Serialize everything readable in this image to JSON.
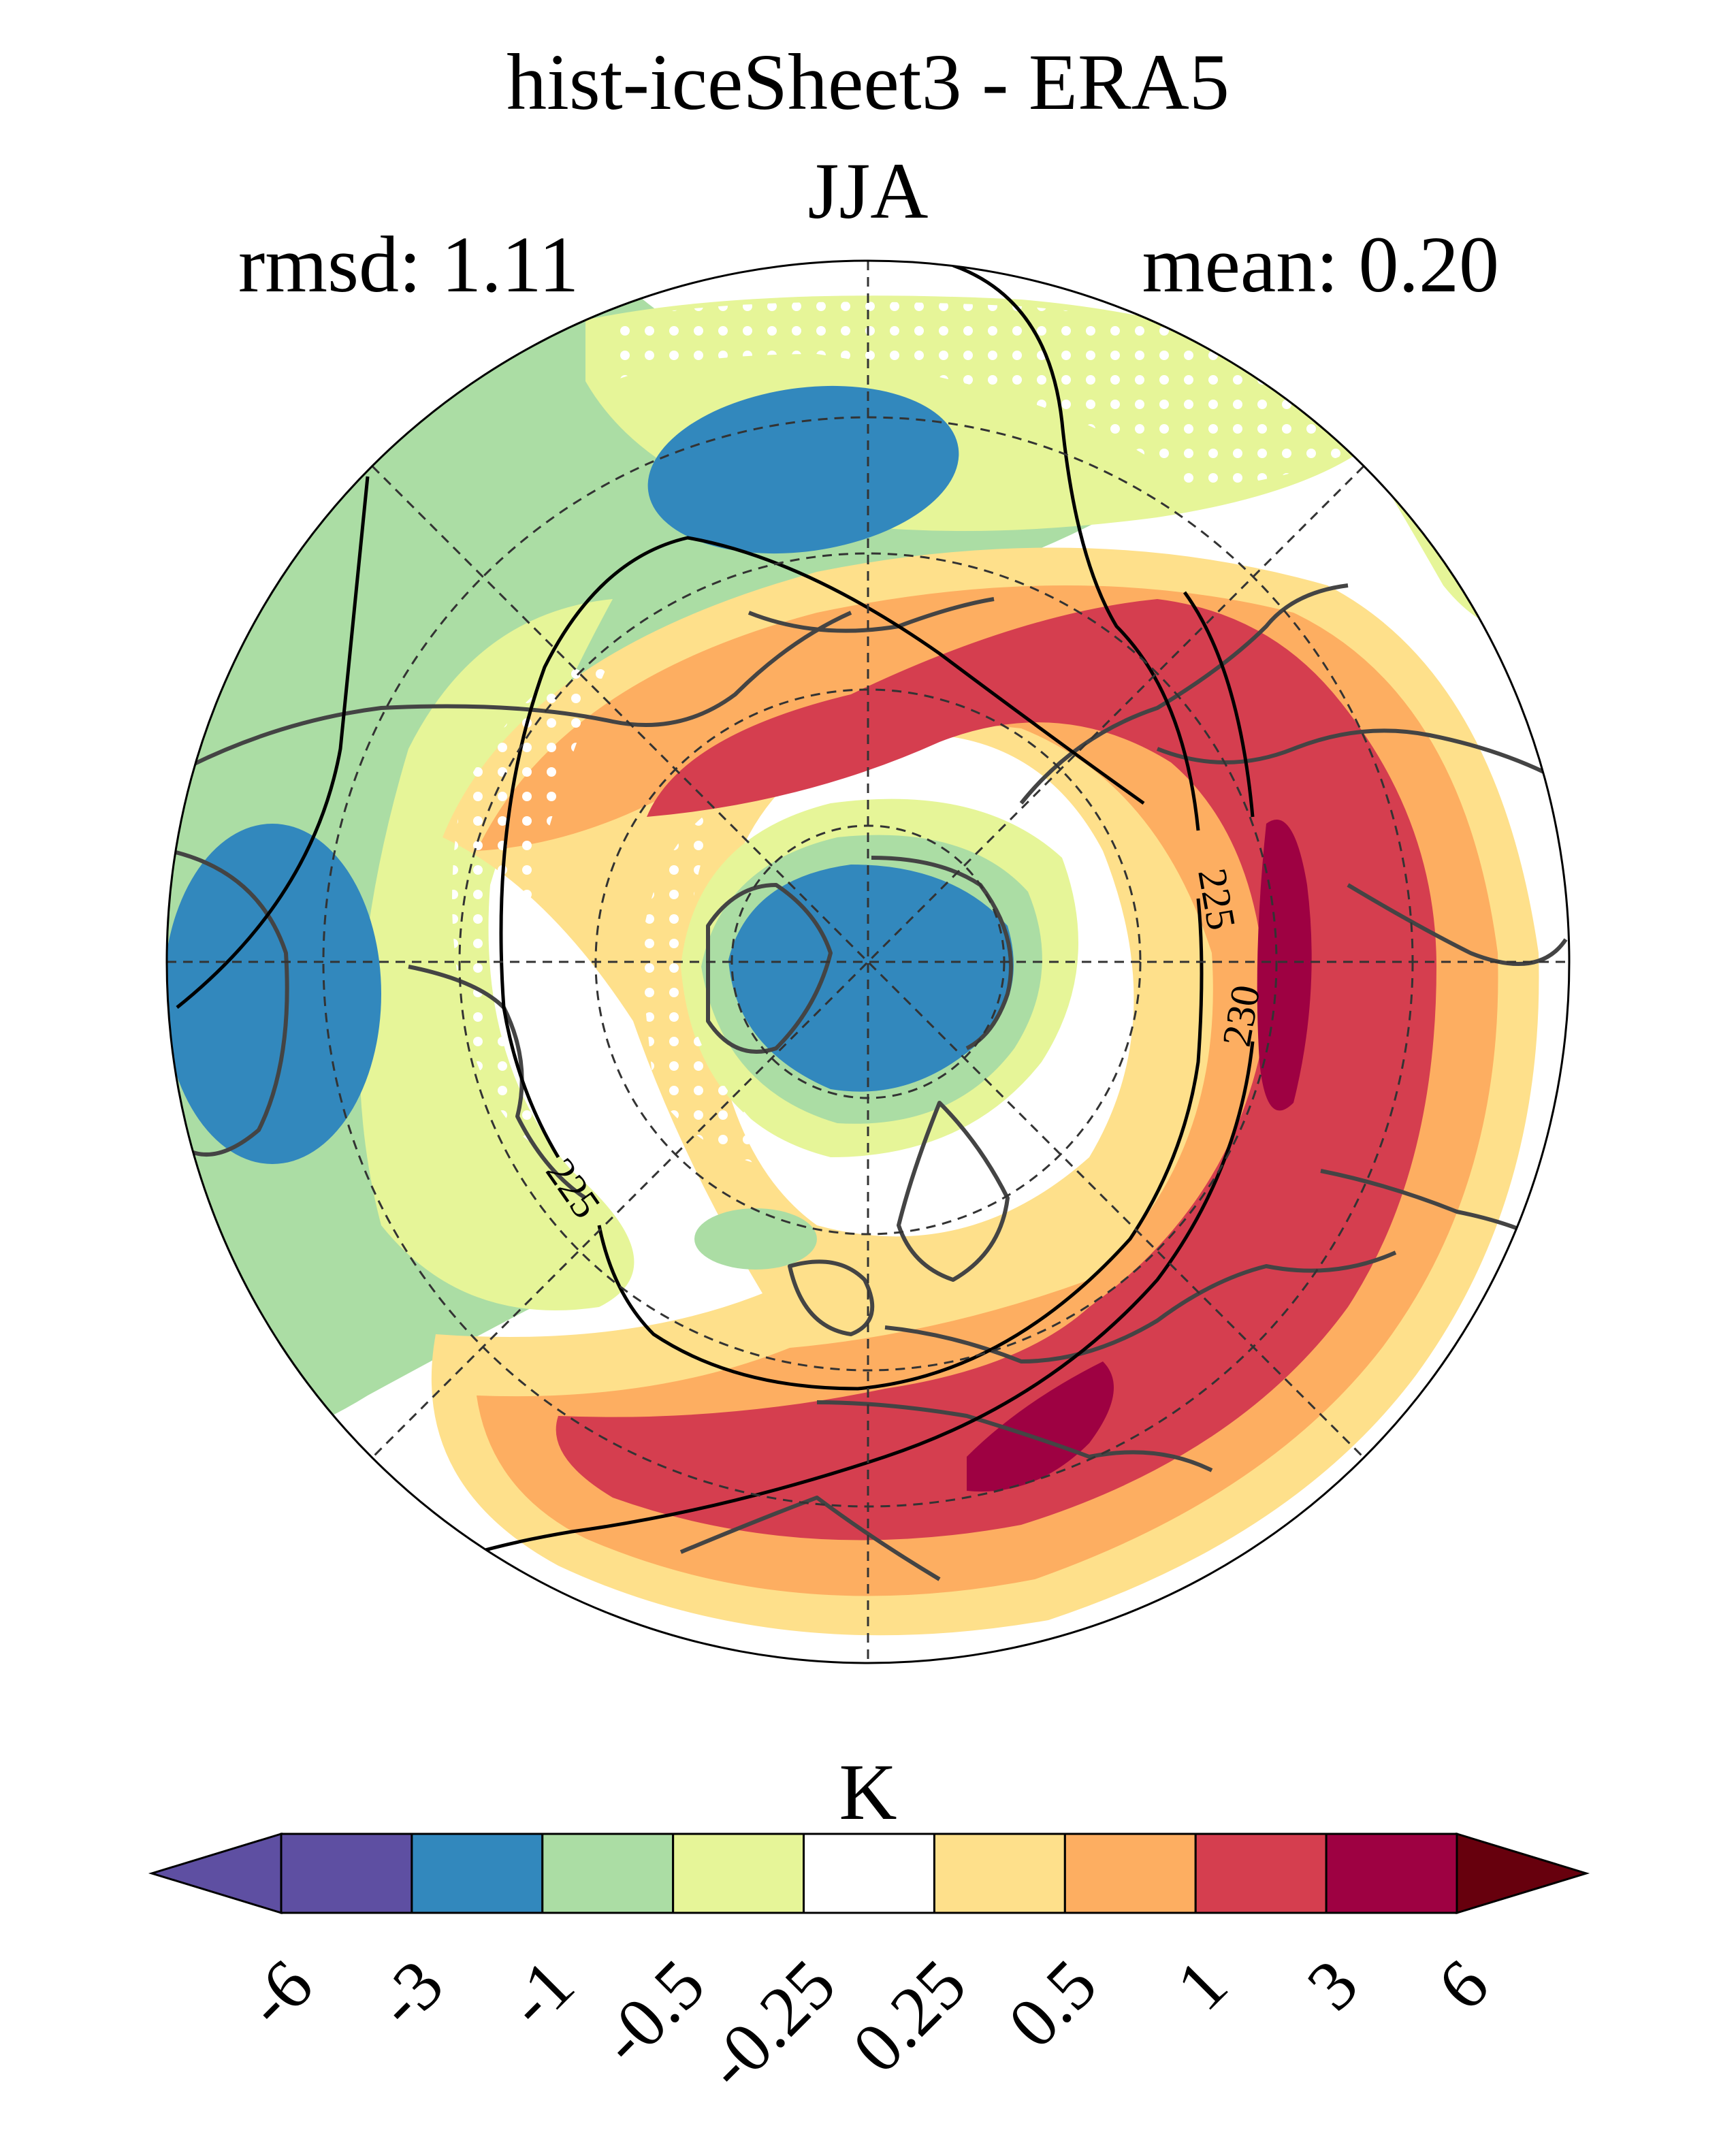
{
  "title": {
    "line1": "hist-iceSheet3 - ERA5",
    "line2": "JJA"
  },
  "stats": {
    "rmsd": "rmsd: 1.11",
    "mean": "mean: 0.20"
  },
  "contour_labels": [
    "225",
    "230",
    "225"
  ],
  "colorbar": {
    "unit": "K",
    "ticks": [
      "-6",
      "-3",
      "-1",
      "-0.5",
      "-0.25",
      "0.25",
      "0.5",
      "1",
      "3",
      "6"
    ],
    "colors": [
      "#5e4fa2",
      "#3288bd",
      "#abdda4",
      "#e6f598",
      "#ffffff",
      "#fee08b",
      "#fdae61",
      "#d53e4f",
      "#9e0142"
    ],
    "under_color": "#5e4fa2",
    "over_color": "#67000d"
  },
  "colors": {
    "red": "#d53e4f",
    "dark_red": "#9e0142",
    "orange": "#fdae61",
    "light_orange": "#fee08b",
    "white": "#ffffff",
    "light_green": "#e6f598",
    "green": "#abdda4",
    "blue": "#3288bd",
    "coast": "#444444"
  }
}
